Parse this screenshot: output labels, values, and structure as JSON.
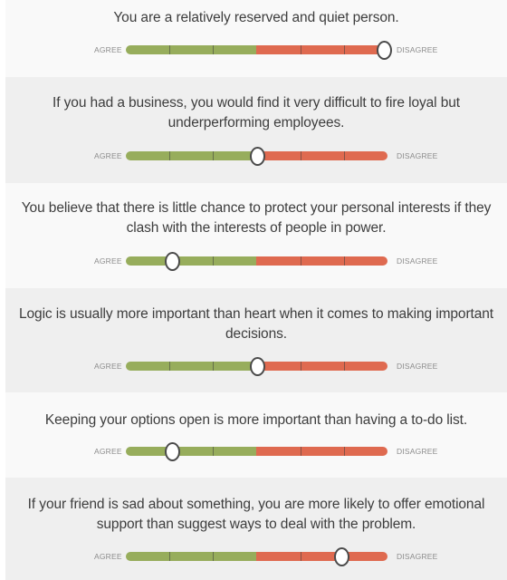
{
  "scale": {
    "agree_label": "AGREE",
    "disagree_label": "DISAGREE",
    "steps": 7,
    "agree_color": "#97ad5c",
    "disagree_color": "#df6a50"
  },
  "questions": [
    {
      "text": "You are a relatively reserved and quiet person.",
      "selected_step": 7
    },
    {
      "text": "If you had a business, you would find it very difficult to fire loyal but underperforming employees.",
      "selected_step": 4
    },
    {
      "text": "You believe that there is little chance to protect your personal interests if they clash with the interests of people in power.",
      "selected_step": 2
    },
    {
      "text": "Logic is usually more important than heart when it comes to making important decisions.",
      "selected_step": 4
    },
    {
      "text": "Keeping your options open is more important than having a to-do list.",
      "selected_step": 2
    },
    {
      "text": "If your friend is sad about something, you are more likely to offer emotional support than suggest ways to deal with the problem.",
      "selected_step": 6
    }
  ]
}
